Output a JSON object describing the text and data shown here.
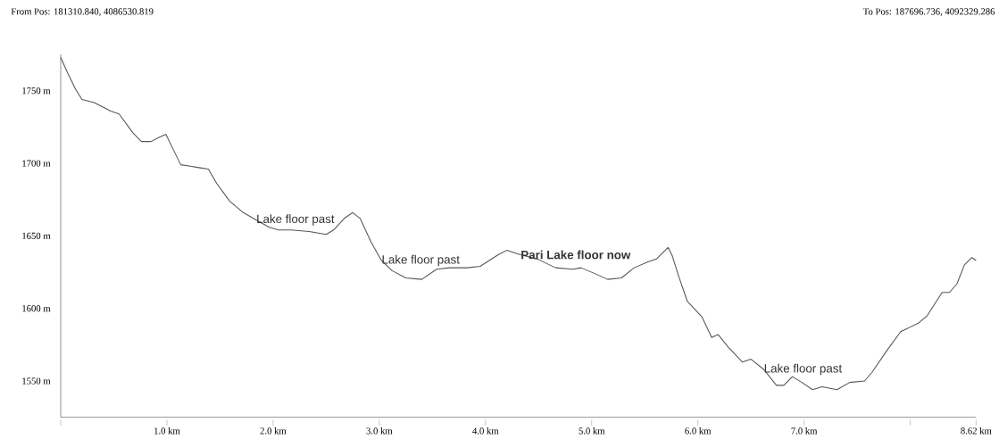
{
  "chart_data": {
    "type": "line",
    "color": "#555555",
    "marker": "none",
    "line_style": "solid",
    "x": [
      0,
      0.06,
      0.14,
      0.2,
      0.31,
      0.39,
      0.47,
      0.55,
      0.68,
      0.76,
      0.85,
      0.93,
      0.99,
      1.05,
      1.13,
      1.22,
      1.3,
      1.39,
      1.47,
      1.59,
      1.72,
      1.84,
      1.96,
      2.05,
      2.17,
      2.34,
      2.5,
      2.57,
      2.67,
      2.75,
      2.82,
      2.92,
      3.02,
      3.12,
      3.25,
      3.4,
      3.54,
      3.66,
      3.83,
      3.95,
      4.12,
      4.2,
      4.33,
      4.49,
      4.66,
      4.82,
      4.9,
      5.03,
      5.15,
      5.28,
      5.4,
      5.53,
      5.61,
      5.72,
      5.76,
      5.82,
      5.9,
      6.04,
      6.13,
      6.19,
      6.29,
      6.42,
      6.5,
      6.62,
      6.74,
      6.81,
      6.89,
      6.98,
      7.08,
      7.17,
      7.31,
      7.43,
      7.57,
      7.64,
      7.78,
      7.91,
      8.08,
      8.16,
      8.3,
      8.37,
      8.44,
      8.51,
      8.58,
      8.62
    ],
    "values": [
      1773,
      1763,
      1751,
      1744,
      1742,
      1739,
      1736,
      1734,
      1721,
      1715,
      1715,
      1718,
      1720,
      1711,
      1699,
      1698,
      1697,
      1696,
      1686,
      1674,
      1666,
      1661,
      1656,
      1654,
      1654,
      1653,
      1651,
      1654,
      1662,
      1666,
      1662,
      1646,
      1633,
      1626,
      1621,
      1620,
      1627,
      1628,
      1628,
      1629,
      1637,
      1640,
      1637,
      1634,
      1628,
      1627,
      1628,
      1624,
      1620,
      1621,
      1628,
      1632,
      1634,
      1642,
      1636,
      1622,
      1605,
      1594,
      1580,
      1582,
      1573,
      1563,
      1565,
      1558,
      1547,
      1547,
      1553,
      1549,
      1544,
      1546,
      1544,
      1549,
      1550,
      1556,
      1571,
      1584,
      1590,
      1595,
      1611,
      1611,
      1617,
      1630,
      1635,
      1633
    ],
    "xlim": [
      0,
      8.62
    ],
    "ylim": [
      1525,
      1775
    ],
    "xticks": [
      {
        "value": 0,
        "label": null
      },
      {
        "value": 1,
        "label": "1.0 km"
      },
      {
        "value": 2,
        "label": "2.0 km"
      },
      {
        "value": 3,
        "label": "3.0 km"
      },
      {
        "value": 4,
        "label": "4.0 km"
      },
      {
        "value": 5,
        "label": "5.0 km"
      },
      {
        "value": 6,
        "label": "6.0 km"
      },
      {
        "value": 7,
        "label": "7.0 km"
      },
      {
        "value": 8,
        "label": null
      },
      {
        "value": 8.62,
        "label": "8.62 km"
      }
    ],
    "yticks": [
      {
        "value": 1550,
        "label": "1550 m"
      },
      {
        "value": 1600,
        "label": "1600 m"
      },
      {
        "value": 1650,
        "label": "1650 m"
      },
      {
        "value": 1700,
        "label": "1700 m"
      },
      {
        "value": 1750,
        "label": "1750 m"
      }
    ],
    "annotations": [
      "From Pos: 181310.840, 4086530.819",
      "To Pos: 187696.736, 4092329.286",
      {
        "text": "Lake floor past",
        "x": 1.84,
        "y": 1661
      },
      {
        "text": "Lake floor past",
        "x": 3.02,
        "y": 1633
      },
      {
        "text": "Pari Lake floor now",
        "x": 4.33,
        "y": 1637
      },
      {
        "text": "Lake floor past",
        "x": 6.62,
        "y": 1558
      }
    ]
  }
}
